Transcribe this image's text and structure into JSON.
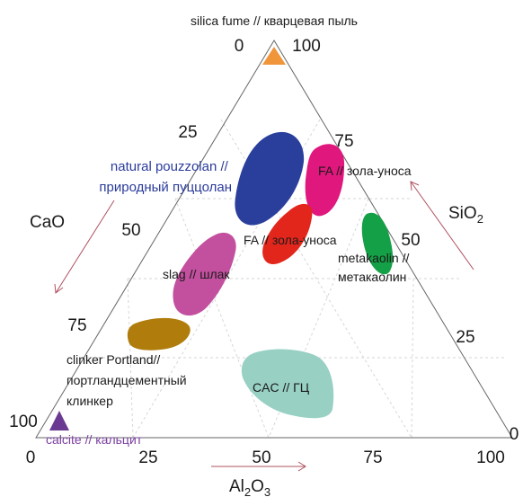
{
  "chart_data": {
    "type": "ternary",
    "axes": {
      "sio2": {
        "label_base": "SiO",
        "label_sub": "2",
        "ticks": [
          "0",
          "25",
          "50",
          "75",
          "100"
        ]
      },
      "al2o3": {
        "label_base": "Al",
        "label_sub1": "2",
        "label_mid": "O",
        "label_sub2": "3",
        "ticks": [
          "0",
          "25",
          "50",
          "75",
          "100"
        ]
      },
      "cao": {
        "label": "CaO",
        "ticks": [
          "0",
          "25",
          "50",
          "75",
          "100"
        ]
      }
    },
    "vertices": {
      "top": "silica fume // кварцевая пыль",
      "top_value": "100",
      "top_zero": "0",
      "bottom_left": "calcite // кальцит",
      "bottom_left_value": "100",
      "bottom_left_zero": "0",
      "bottom_right_value": "100",
      "bottom_right_zero": "0"
    },
    "regions": [
      {
        "id": "natural-pozzolan",
        "label_line1": "natural pouzzolan //",
        "label_line2": "природный пуццолан",
        "color": "#2a3f9c",
        "approx_center": {
          "sio2": 70,
          "al2o3": 15,
          "cao": 15
        }
      },
      {
        "id": "fly-ash-siliceous",
        "label": "FA // зола-уноса",
        "color": "#e0177d",
        "approx_center": {
          "sio2": 65,
          "al2o3": 30,
          "cao": 5
        }
      },
      {
        "id": "fly-ash-calcareous",
        "label": "FA // зола-уноса",
        "color": "#e3261c",
        "approx_center": {
          "sio2": 55,
          "al2o3": 25,
          "cao": 20
        }
      },
      {
        "id": "metakaolin",
        "label_line1": "metakaolin //",
        "label_line2": "метакаолин",
        "color": "#14a046",
        "approx_center": {
          "sio2": 52,
          "al2o3": 45,
          "cao": 3
        }
      },
      {
        "id": "slag",
        "label": "slag // шлак",
        "color": "#c3509f",
        "approx_center": {
          "sio2": 38,
          "al2o3": 15,
          "cao": 47
        }
      },
      {
        "id": "portland-clinker",
        "label_line1": "clinker Portland//",
        "label_line2": "портландцементный",
        "label_line3": "клинкер",
        "color": "#b07d0d",
        "approx_center": {
          "sio2": 22,
          "al2o3": 5,
          "cao": 73
        }
      },
      {
        "id": "cac",
        "label": "CAC // ГЦ",
        "color": "#98d0c4",
        "approx_center": {
          "sio2": 10,
          "al2o3": 50,
          "cao": 40
        }
      }
    ],
    "markers": [
      {
        "id": "silica-fume",
        "shape": "triangle-up",
        "color": "#f0953a"
      },
      {
        "id": "calcite",
        "shape": "triangle-up",
        "color": "#6a3a93"
      }
    ],
    "arrow_color": "#b05060",
    "grid": true
  }
}
